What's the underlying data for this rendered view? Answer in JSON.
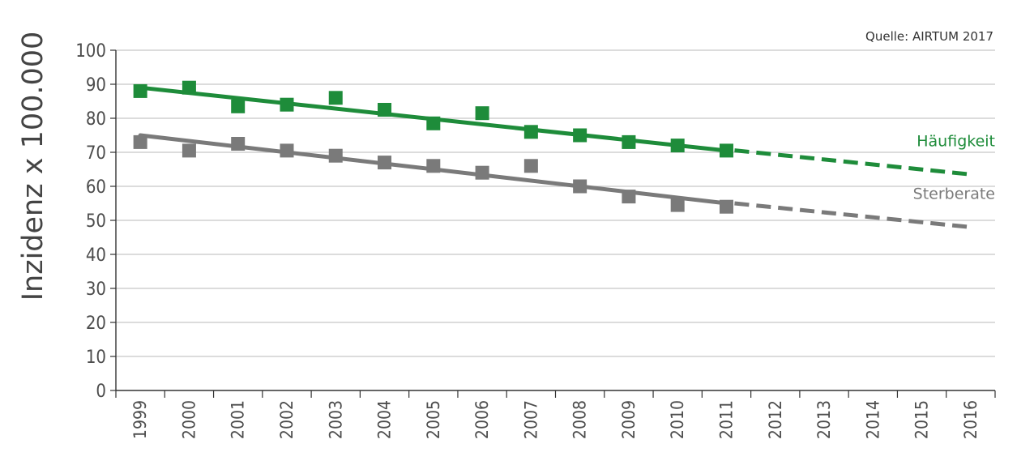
{
  "source_note": "Quelle: AIRTUM 2017",
  "colors": {
    "incidence": "#1e8c3a",
    "mortality": "#7a7a7a",
    "grid": "#c8c8c8",
    "axis": "#333333"
  },
  "chart_data": {
    "type": "scatter",
    "title": "",
    "xlabel": "",
    "ylabel": "Inzidenz x 100.000",
    "x_categories": [
      "1999",
      "2000",
      "2001",
      "2002",
      "2003",
      "2004",
      "2005",
      "2006",
      "2007",
      "2008",
      "2009",
      "2010",
      "2011",
      "2012",
      "2013",
      "2014",
      "2015",
      "2016"
    ],
    "ylim": [
      0,
      100
    ],
    "y_ticks": [
      0,
      10,
      20,
      30,
      40,
      50,
      60,
      70,
      80,
      90,
      100
    ],
    "grid": "horizontal",
    "series": [
      {
        "name": "Häufigkeit",
        "color_key": "incidence",
        "points": [
          {
            "x": "1999",
            "y": 88
          },
          {
            "x": "2000",
            "y": 89
          },
          {
            "x": "2001",
            "y": 83.5
          },
          {
            "x": "2002",
            "y": 84
          },
          {
            "x": "2003",
            "y": 86
          },
          {
            "x": "2004",
            "y": 82.5
          },
          {
            "x": "2005",
            "y": 78.5
          },
          {
            "x": "2006",
            "y": 81.5
          },
          {
            "x": "2007",
            "y": 76
          },
          {
            "x": "2008",
            "y": 75
          },
          {
            "x": "2009",
            "y": 73
          },
          {
            "x": "2010",
            "y": 72
          },
          {
            "x": "2011",
            "y": 70.5
          }
        ],
        "trend": [
          {
            "x": "1999",
            "y": 89
          },
          {
            "x": "2011",
            "y": 70.5
          }
        ],
        "projection": [
          {
            "x": "2011",
            "y": 70.5
          },
          {
            "x": "2016",
            "y": 63.5
          }
        ]
      },
      {
        "name": "Sterberate",
        "color_key": "mortality",
        "points": [
          {
            "x": "1999",
            "y": 73
          },
          {
            "x": "2000",
            "y": 70.5
          },
          {
            "x": "2001",
            "y": 72.5
          },
          {
            "x": "2002",
            "y": 70.5
          },
          {
            "x": "2003",
            "y": 69
          },
          {
            "x": "2004",
            "y": 67
          },
          {
            "x": "2005",
            "y": 66
          },
          {
            "x": "2006",
            "y": 64
          },
          {
            "x": "2007",
            "y": 66
          },
          {
            "x": "2008",
            "y": 60
          },
          {
            "x": "2009",
            "y": 57
          },
          {
            "x": "2010",
            "y": 54.5
          },
          {
            "x": "2011",
            "y": 54
          }
        ],
        "trend": [
          {
            "x": "1999",
            "y": 75
          },
          {
            "x": "2011",
            "y": 55
          }
        ],
        "projection": [
          {
            "x": "2011",
            "y": 55
          },
          {
            "x": "2016",
            "y": 48
          }
        ]
      }
    ]
  }
}
